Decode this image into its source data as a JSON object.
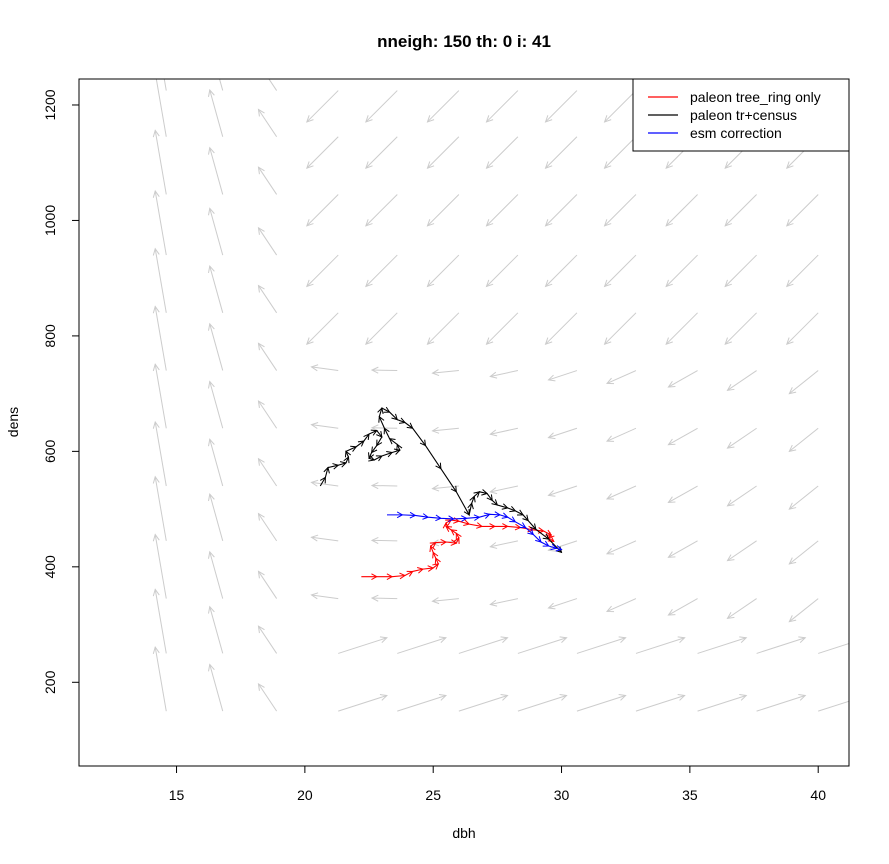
{
  "chart_data": {
    "type": "line",
    "title": "nneigh: 150 th: 0 i: 41",
    "xlabel": "dbh",
    "ylabel": "dens",
    "xlim": [
      11.2,
      41.2
    ],
    "ylim": [
      55,
      1245
    ],
    "xticks": [
      15,
      20,
      25,
      30,
      35,
      40
    ],
    "yticks": [
      200,
      400,
      600,
      800,
      1000,
      1200
    ],
    "grid": false,
    "legend_position": "top-right",
    "colors": {
      "field": "#cccccc",
      "tree_ring": "#ff0000",
      "tr_census": "#000000",
      "esm": "#0000ff"
    },
    "series": [
      {
        "name": "paleon tree_ring only",
        "color": "#ff0000",
        "points": [
          [
            22.2,
            383
          ],
          [
            22.8,
            383
          ],
          [
            23.4,
            383
          ],
          [
            23.9,
            385
          ],
          [
            24.2,
            392
          ],
          [
            24.6,
            396
          ],
          [
            25.0,
            398
          ],
          [
            25.2,
            405
          ],
          [
            25.1,
            415
          ],
          [
            25.0,
            425
          ],
          [
            24.9,
            436
          ],
          [
            25.1,
            442
          ],
          [
            25.5,
            443
          ],
          [
            25.9,
            441
          ],
          [
            26.0,
            450
          ],
          [
            25.9,
            458
          ],
          [
            25.7,
            464
          ],
          [
            25.5,
            470
          ],
          [
            25.5,
            476
          ],
          [
            25.7,
            481
          ],
          [
            26.0,
            479
          ],
          [
            26.4,
            474
          ],
          [
            26.9,
            470
          ],
          [
            27.4,
            470
          ],
          [
            27.9,
            470
          ],
          [
            28.4,
            468
          ],
          [
            28.9,
            464
          ],
          [
            29.3,
            462
          ],
          [
            29.6,
            455
          ],
          [
            29.5,
            450
          ],
          [
            29.7,
            444
          ]
        ]
      },
      {
        "name": "paleon tr+census",
        "color": "#000000",
        "points": [
          [
            20.6,
            540
          ],
          [
            20.8,
            555
          ],
          [
            20.9,
            572
          ],
          [
            21.3,
            576
          ],
          [
            21.6,
            580
          ],
          [
            21.7,
            590
          ],
          [
            21.6,
            600
          ],
          [
            22.0,
            608
          ],
          [
            22.3,
            618
          ],
          [
            22.5,
            630
          ],
          [
            22.8,
            636
          ],
          [
            23.0,
            625
          ],
          [
            22.8,
            610
          ],
          [
            22.6,
            598
          ],
          [
            22.5,
            588
          ],
          [
            22.7,
            585
          ],
          [
            23.0,
            592
          ],
          [
            23.4,
            598
          ],
          [
            23.7,
            602
          ],
          [
            23.6,
            612
          ],
          [
            23.3,
            622
          ],
          [
            23.1,
            640
          ],
          [
            22.9,
            660
          ],
          [
            23.0,
            675
          ],
          [
            23.3,
            668
          ],
          [
            23.6,
            655
          ],
          [
            23.9,
            650
          ],
          [
            24.2,
            640
          ],
          [
            24.7,
            610
          ],
          [
            25.3,
            570
          ],
          [
            25.9,
            530
          ],
          [
            26.4,
            490
          ],
          [
            26.5,
            510
          ],
          [
            26.6,
            522
          ],
          [
            26.8,
            530
          ],
          [
            27.1,
            527
          ],
          [
            27.3,
            515
          ],
          [
            27.5,
            507
          ],
          [
            27.9,
            502
          ],
          [
            28.2,
            497
          ],
          [
            28.5,
            490
          ],
          [
            28.7,
            480
          ],
          [
            29.0,
            465
          ],
          [
            29.5,
            448
          ],
          [
            30.0,
            425
          ]
        ]
      },
      {
        "name": "esm correction",
        "color": "#0000ff",
        "points": [
          [
            23.2,
            490
          ],
          [
            23.8,
            490
          ],
          [
            24.3,
            489
          ],
          [
            24.8,
            486
          ],
          [
            25.3,
            484
          ],
          [
            25.8,
            483
          ],
          [
            26.3,
            484
          ],
          [
            26.8,
            486
          ],
          [
            27.2,
            491
          ],
          [
            27.6,
            490
          ],
          [
            27.9,
            486
          ],
          [
            28.2,
            478
          ],
          [
            28.6,
            468
          ],
          [
            28.9,
            456
          ],
          [
            29.2,
            443
          ],
          [
            29.5,
            436
          ],
          [
            29.8,
            432
          ],
          [
            30.0,
            430
          ]
        ]
      }
    ],
    "vector_field": {
      "x": [
        14.6,
        16.8,
        18.9,
        21.3,
        23.6,
        26.0,
        28.3,
        30.6,
        32.9,
        35.3,
        37.6,
        40.0
      ],
      "y": [
        150,
        250,
        345,
        445,
        540,
        640,
        740,
        840,
        940,
        1045,
        1145,
        1225
      ]
    }
  }
}
